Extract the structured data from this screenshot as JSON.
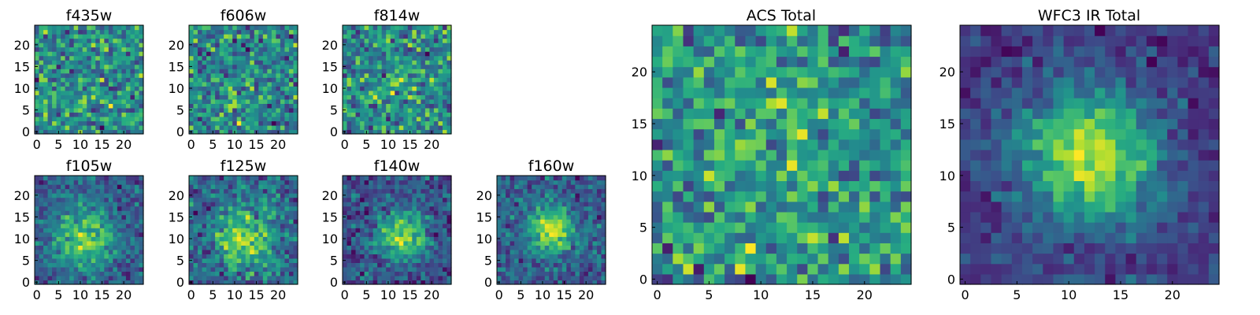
{
  "chart_data": [
    {
      "type": "heatmap",
      "title": "f435w",
      "colormap": "viridis",
      "grid": false,
      "shape": [
        25,
        25
      ],
      "origin": "lower",
      "xlim": [
        -0.5,
        24.5
      ],
      "ylim": [
        -0.5,
        24.5
      ],
      "xticks": [
        0,
        5,
        10,
        15,
        20
      ],
      "yticks": [
        0,
        5,
        10,
        15,
        20
      ],
      "pattern": "noise",
      "seed": 11,
      "peak": 0.0,
      "center": [
        12,
        11
      ],
      "spread": 4.0,
      "noise": 0.28,
      "base": 0.6
    },
    {
      "type": "heatmap",
      "title": "f606w",
      "colormap": "viridis",
      "grid": false,
      "shape": [
        25,
        25
      ],
      "origin": "lower",
      "xlim": [
        -0.5,
        24.5
      ],
      "ylim": [
        -0.5,
        24.5
      ],
      "xticks": [
        0,
        5,
        10,
        15,
        20
      ],
      "yticks": [
        0,
        5,
        10,
        15,
        20
      ],
      "pattern": "noise",
      "seed": 23,
      "peak": 0.1,
      "center": [
        11,
        6
      ],
      "spread": 3.0,
      "noise": 0.28,
      "base": 0.64
    },
    {
      "type": "heatmap",
      "title": "f814w",
      "colormap": "viridis",
      "grid": false,
      "shape": [
        25,
        25
      ],
      "origin": "lower",
      "xlim": [
        -0.5,
        24.5
      ],
      "ylim": [
        -0.5,
        24.5
      ],
      "xticks": [
        0,
        5,
        10,
        15,
        20
      ],
      "yticks": [
        0,
        5,
        10,
        15,
        20
      ],
      "pattern": "noise",
      "seed": 37,
      "peak": 0.1,
      "center": [
        13,
        12
      ],
      "spread": 3.0,
      "noise": 0.3,
      "base": 0.62
    },
    {
      "type": "heatmap",
      "title": "f105w",
      "colormap": "viridis",
      "grid": false,
      "shape": [
        25,
        25
      ],
      "origin": "lower",
      "xlim": [
        -0.5,
        24.5
      ],
      "ylim": [
        -0.5,
        24.5
      ],
      "xticks": [
        0,
        5,
        10,
        15,
        20
      ],
      "yticks": [
        0,
        5,
        10,
        15,
        20
      ],
      "pattern": "source",
      "seed": 41,
      "peak": 0.45,
      "center": [
        11,
        10
      ],
      "spread": 5.0,
      "noise": 0.2,
      "base": 0.5
    },
    {
      "type": "heatmap",
      "title": "f125w",
      "colormap": "viridis",
      "grid": false,
      "shape": [
        25,
        25
      ],
      "origin": "lower",
      "xlim": [
        -0.5,
        24.5
      ],
      "ylim": [
        -0.5,
        24.5
      ],
      "xticks": [
        0,
        5,
        10,
        15,
        20
      ],
      "yticks": [
        0,
        5,
        10,
        15,
        20
      ],
      "pattern": "source",
      "seed": 53,
      "peak": 0.45,
      "center": [
        12,
        10
      ],
      "spread": 4.5,
      "noise": 0.24,
      "base": 0.5
    },
    {
      "type": "heatmap",
      "title": "f140w",
      "colormap": "viridis",
      "grid": false,
      "shape": [
        25,
        25
      ],
      "origin": "lower",
      "xlim": [
        -0.5,
        24.5
      ],
      "ylim": [
        -0.5,
        24.5
      ],
      "xticks": [
        0,
        5,
        10,
        15,
        20
      ],
      "yticks": [
        0,
        5,
        10,
        15,
        20
      ],
      "pattern": "source",
      "seed": 67,
      "peak": 0.5,
      "center": [
        13,
        11
      ],
      "spread": 4.0,
      "noise": 0.2,
      "base": 0.48
    },
    {
      "type": "heatmap",
      "title": "f160w",
      "colormap": "viridis",
      "grid": false,
      "shape": [
        25,
        25
      ],
      "origin": "lower",
      "xlim": [
        -0.5,
        24.5
      ],
      "ylim": [
        -0.5,
        24.5
      ],
      "xticks": [
        0,
        5,
        10,
        15,
        20
      ],
      "yticks": [
        0,
        5,
        10,
        15,
        20
      ],
      "pattern": "source",
      "seed": 79,
      "peak": 0.55,
      "center": [
        12,
        12
      ],
      "spread": 3.5,
      "noise": 0.2,
      "base": 0.42
    },
    {
      "type": "heatmap",
      "title": "ACS Total",
      "colormap": "viridis",
      "grid": false,
      "shape": [
        25,
        25
      ],
      "origin": "lower",
      "xlim": [
        -0.5,
        24.5
      ],
      "ylim": [
        -0.5,
        24.5
      ],
      "xticks": [
        0,
        5,
        10,
        15,
        20
      ],
      "yticks": [
        0,
        5,
        10,
        15,
        20
      ],
      "pattern": "noise",
      "seed": 97,
      "peak": 0.05,
      "center": [
        12,
        12
      ],
      "spread": 4.0,
      "noise": 0.2,
      "base": 0.7
    },
    {
      "type": "heatmap",
      "title": "WFC3 IR Total",
      "colormap": "viridis",
      "grid": false,
      "shape": [
        25,
        25
      ],
      "origin": "lower",
      "xlim": [
        -0.5,
        24.5
      ],
      "ylim": [
        -0.5,
        24.5
      ],
      "xticks": [
        0,
        5,
        10,
        15,
        20
      ],
      "yticks": [
        0,
        5,
        10,
        15,
        20
      ],
      "pattern": "source",
      "seed": 103,
      "peak": 0.55,
      "center": [
        12,
        12
      ],
      "spread": 4.5,
      "noise": 0.12,
      "base": 0.38
    }
  ]
}
